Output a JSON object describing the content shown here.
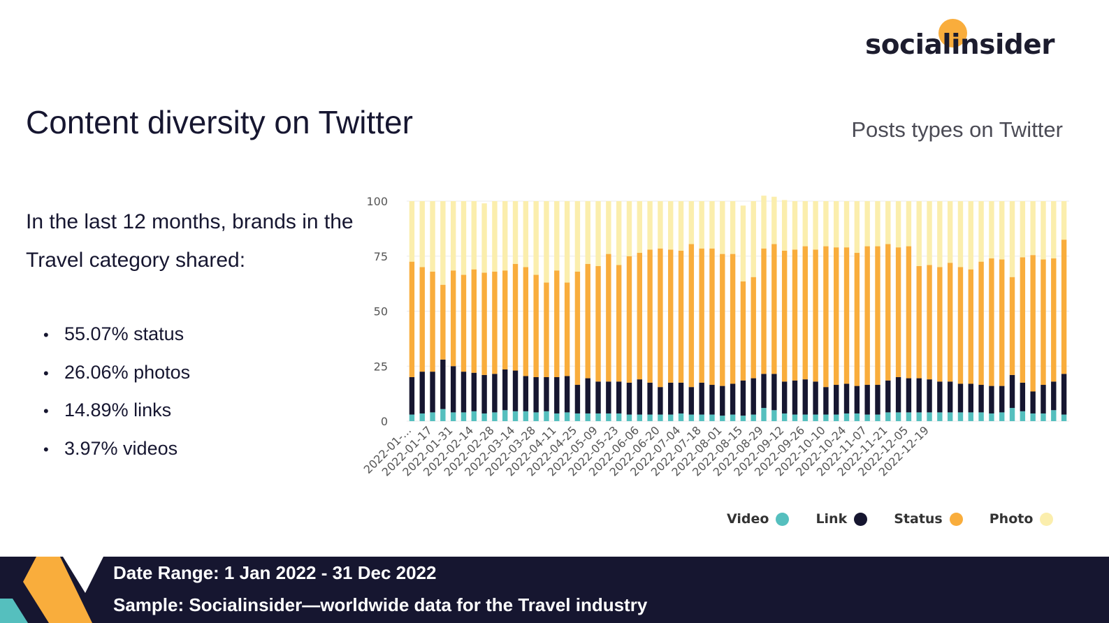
{
  "brand": {
    "logo_text": "socialinsider"
  },
  "title": "Content diversity on Twitter",
  "intro": "In the last 12 months, brands in the Travel category shared:",
  "stats": [
    "55.07% status",
    "26.06% photos",
    "14.89% links",
    "3.97% videos"
  ],
  "footer": {
    "date_range": "Date Range: 1 Jan 2022 - 31 Dec 2022",
    "sample": "Sample: Socialinsider—worldwide data for the Travel industry"
  },
  "colors": {
    "video": "#55bfbe",
    "link": "#161630",
    "status": "#f9ad3c",
    "photo": "#fbeead",
    "navy": "#161630",
    "accent": "#f9ad3c",
    "teal": "#55bfbe"
  },
  "chart_data": {
    "type": "bar",
    "stacked": true,
    "title": "Posts types on Twitter",
    "ylim": [
      0,
      100
    ],
    "yticks": [
      0,
      25,
      50,
      75,
      100
    ],
    "xtick_labels": [
      "2022-01-...",
      "2022-01-17",
      "2022-01-31",
      "2022-02-14",
      "2022-02-28",
      "2022-03-14",
      "2022-03-28",
      "2022-04-11",
      "2022-04-25",
      "2022-05-09",
      "2022-05-23",
      "2022-06-06",
      "2022-06-20",
      "2022-07-04",
      "2022-07-18",
      "2022-08-01",
      "2022-08-15",
      "2022-08-29",
      "2022-09-12",
      "2022-09-26",
      "2022-10-10",
      "2022-10-24",
      "2022-11-07",
      "2022-11-21",
      "2022-12-05",
      "2022-12-19"
    ],
    "legend_position": "bottom-right",
    "series": [
      {
        "name": "Video",
        "values": [
          3,
          3.5,
          4,
          5.5,
          4,
          4,
          4.5,
          3.5,
          4,
          5,
          4.5,
          4.5,
          4,
          4.5,
          3.5,
          4,
          3.5,
          3.5,
          3.5,
          3.5,
          3.5,
          3,
          3,
          3,
          3,
          3,
          3.5,
          3,
          3,
          3,
          2.5,
          3,
          2.5,
          3,
          6,
          5,
          3.5,
          3,
          3,
          3,
          3,
          3,
          3.5,
          3.5,
          3,
          3,
          4,
          4,
          4,
          4,
          4,
          4,
          4,
          4,
          4,
          4,
          3.5,
          4,
          6,
          4.5,
          3.5,
          3.5,
          5,
          3
        ]
      },
      {
        "name": "Link",
        "values": [
          17,
          19,
          18.5,
          22.5,
          21,
          18.5,
          17.5,
          17.5,
          17.5,
          18.5,
          18.5,
          16,
          16,
          15.5,
          16.5,
          16.5,
          13,
          16,
          14.5,
          14.5,
          14.5,
          14.5,
          16,
          14.5,
          12.5,
          14.5,
          14,
          12.5,
          14.5,
          13.5,
          13.5,
          14,
          16,
          16.5,
          15.5,
          16.5,
          14.5,
          15.5,
          16,
          15,
          12.5,
          13.5,
          13.5,
          12.5,
          13.5,
          13.5,
          14.5,
          16,
          15.5,
          15.5,
          15,
          14,
          14,
          13,
          13,
          12.5,
          12.5,
          12,
          15,
          13,
          10,
          13,
          13,
          18.5
        ]
      },
      {
        "name": "Status",
        "values": [
          52.5,
          47.5,
          45.5,
          34,
          43.5,
          44,
          47,
          46.5,
          46.5,
          45,
          48.5,
          49.5,
          46.5,
          43,
          48.5,
          42.5,
          51.5,
          52,
          52.5,
          58,
          53,
          57.5,
          57.5,
          60.5,
          63,
          60.5,
          60,
          65,
          61,
          62,
          60,
          59,
          45,
          46,
          57,
          59,
          59.5,
          59.5,
          60.5,
          60,
          64,
          62.5,
          62,
          60.5,
          63,
          63,
          62,
          59,
          60,
          51,
          52,
          52,
          54,
          53,
          52,
          56,
          58,
          57.5,
          44.5,
          57,
          62,
          57,
          56,
          61
        ]
      },
      {
        "name": "Photo",
        "values": [
          27.5,
          30,
          32,
          38,
          31.5,
          33.5,
          31,
          31.5,
          32,
          31.5,
          28.5,
          30,
          33.5,
          37,
          31.5,
          37,
          32,
          28.5,
          29.5,
          24,
          29,
          25,
          23.5,
          22,
          21.5,
          22,
          22.5,
          19.5,
          21.5,
          21.5,
          24,
          24,
          34.5,
          34.5,
          24,
          21.5,
          23,
          22,
          20.5,
          22,
          20.5,
          21,
          21,
          23.5,
          20.5,
          20.5,
          19.5,
          21,
          20.5,
          29.5,
          29,
          30,
          28,
          30,
          31,
          27.5,
          26,
          26.5,
          34.5,
          25.5,
          24.5,
          26.5,
          26,
          17.5
        ]
      }
    ]
  }
}
